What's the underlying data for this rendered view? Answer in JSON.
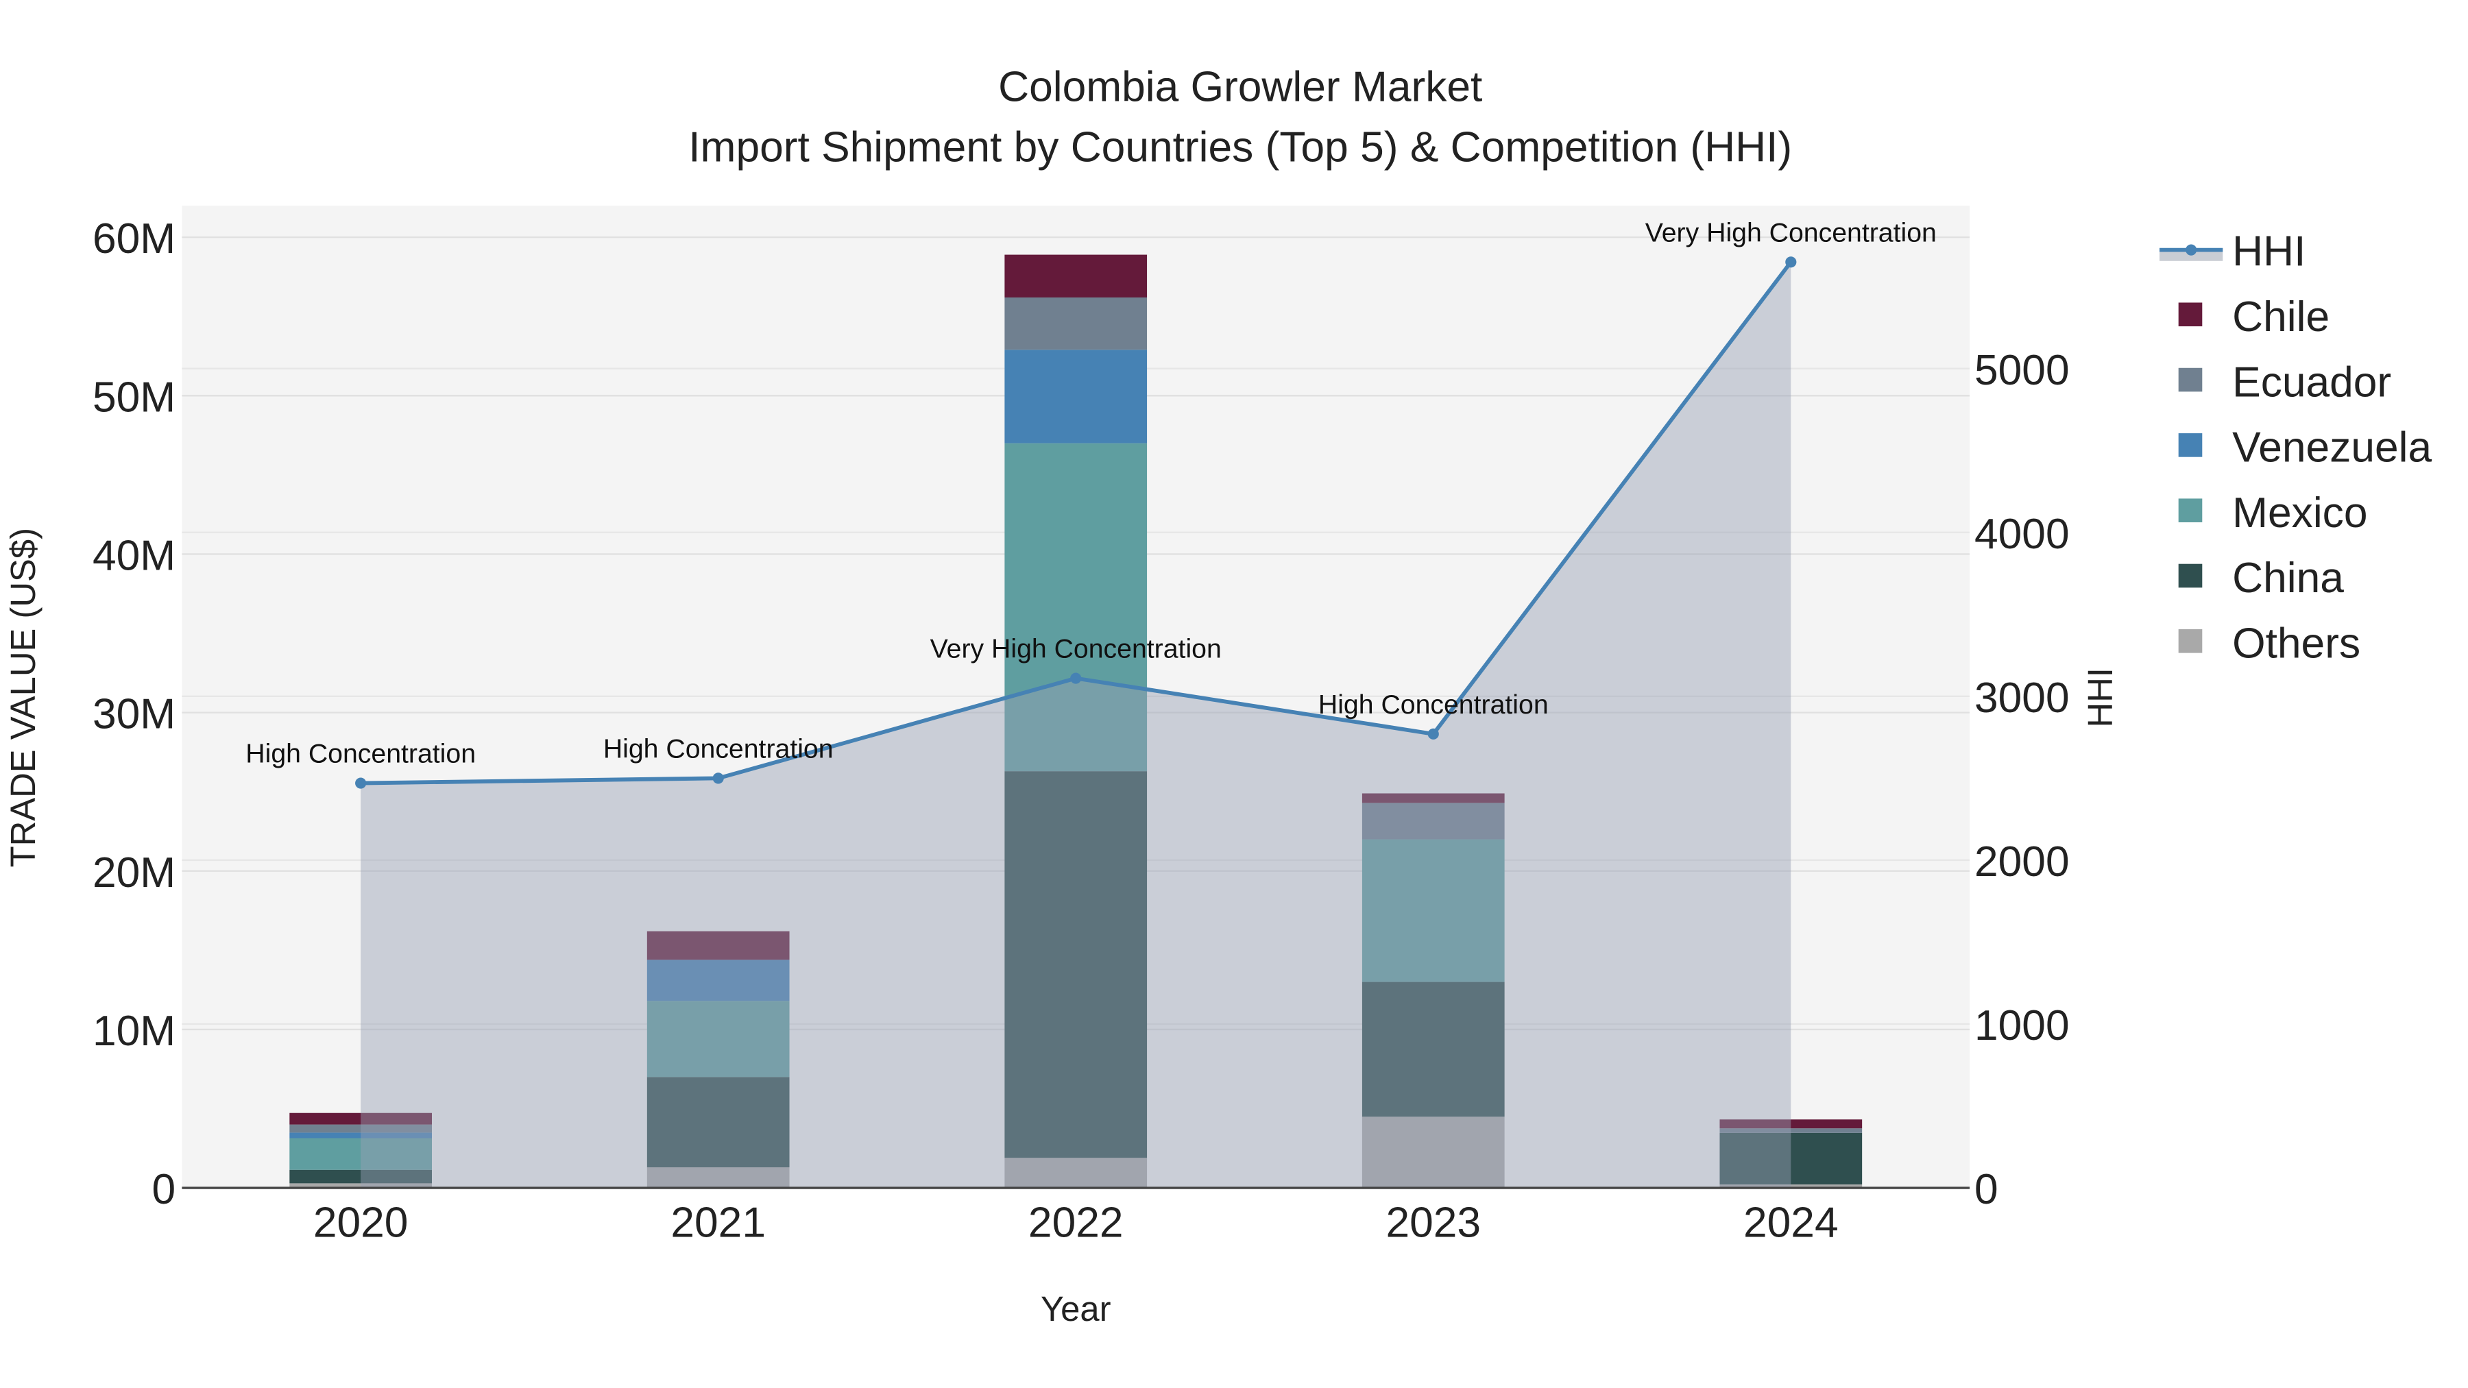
{
  "chart_data": {
    "type": "bar",
    "title": "Colombia Growler Market",
    "subtitle": "Import Shipment by Countries (Top 5) & Competition (HHI)",
    "xlabel": "Year",
    "ylabel": "TRADE VALUE (US$)",
    "y2label": "HHI",
    "categories": [
      "2020",
      "2021",
      "2022",
      "2023",
      "2024"
    ],
    "ylim": [
      0,
      62000000
    ],
    "y2lim": [
      0,
      6000
    ],
    "yticks": [
      {
        "v": 0,
        "label": "0"
      },
      {
        "v": 10000000,
        "label": "10M"
      },
      {
        "v": 20000000,
        "label": "20M"
      },
      {
        "v": 30000000,
        "label": "30M"
      },
      {
        "v": 40000000,
        "label": "40M"
      },
      {
        "v": 50000000,
        "label": "50M"
      },
      {
        "v": 60000000,
        "label": "60M"
      }
    ],
    "y2ticks": [
      {
        "v": 0,
        "label": "0"
      },
      {
        "v": 1000,
        "label": "1000"
      },
      {
        "v": 2000,
        "label": "2000"
      },
      {
        "v": 3000,
        "label": "3000"
      },
      {
        "v": 4000,
        "label": "4000"
      },
      {
        "v": 5000,
        "label": "5000"
      }
    ],
    "stacked": true,
    "grid": true,
    "legend_position": "right",
    "series": [
      {
        "name": "Others",
        "color": "#a9a9a9",
        "values": [
          290000,
          1300000,
          1900000,
          4500000,
          220000
        ]
      },
      {
        "name": "China",
        "color": "#2f4f4f",
        "values": [
          850000,
          5700000,
          24400000,
          8500000,
          3250000
        ]
      },
      {
        "name": "Mexico",
        "color": "#5f9ea0",
        "values": [
          2000000,
          4800000,
          20700000,
          9000000,
          0
        ]
      },
      {
        "name": "Venezuela",
        "color": "#4682b4",
        "values": [
          350000,
          2600000,
          5900000,
          0,
          0
        ]
      },
      {
        "name": "Ecuador",
        "color": "#708090",
        "values": [
          510000,
          0,
          3300000,
          2300000,
          290000
        ]
      },
      {
        "name": "Chile",
        "color": "#641a3a",
        "values": [
          730000,
          1800000,
          2700000,
          600000,
          560000
        ]
      }
    ],
    "hhi": {
      "name": "HHI",
      "color": "#4682b4",
      "values": [
        2470,
        2500,
        3110,
        2770,
        5650
      ],
      "labels": [
        "High Concentration",
        "High Concentration",
        "Very High Concentration",
        "High Concentration",
        "Very High Concentration"
      ]
    },
    "legend_order": [
      "HHI",
      "Chile",
      "Ecuador",
      "Venezuela",
      "Mexico",
      "China",
      "Others"
    ]
  }
}
